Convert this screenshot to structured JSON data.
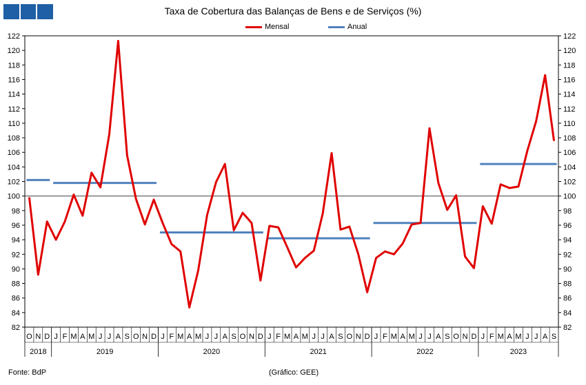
{
  "header": {
    "title": "Taxa de Cobertura das Balanças de Bens e de Serviços (%)"
  },
  "footer": {
    "source": "Fonte: BdP",
    "credit": "(Gráfico: GEE)"
  },
  "colors": {
    "logo": "#1f5fa5",
    "mensal": "#e00000",
    "anual": "#4f81bd"
  },
  "chart_data": {
    "type": "line",
    "title": "Taxa de Cobertura das Balanças de Bens e de Serviços (%)",
    "ylim": [
      82,
      122
    ],
    "yticks": [
      82,
      84,
      86,
      88,
      90,
      92,
      94,
      96,
      98,
      100,
      102,
      104,
      106,
      108,
      110,
      112,
      114,
      116,
      118,
      120,
      122
    ],
    "reference_line": 100,
    "legend_position": "top-center",
    "grid": false,
    "month_labels": [
      "O",
      "N",
      "D",
      "J",
      "F",
      "M",
      "A",
      "M",
      "J",
      "J",
      "A",
      "S",
      "O",
      "N",
      "D",
      "J",
      "F",
      "M",
      "A",
      "M",
      "J",
      "J",
      "A",
      "S",
      "O",
      "N",
      "D",
      "J",
      "F",
      "M",
      "A",
      "M",
      "J",
      "J",
      "A",
      "S",
      "O",
      "N",
      "D",
      "J",
      "F",
      "M",
      "A",
      "M",
      "J",
      "J",
      "A",
      "S",
      "O",
      "N",
      "D",
      "J",
      "F",
      "M",
      "A",
      "M",
      "J",
      "J",
      "A",
      "S"
    ],
    "years": [
      {
        "label": "2018",
        "start": 0,
        "end": 2
      },
      {
        "label": "2019",
        "start": 3,
        "end": 14
      },
      {
        "label": "2020",
        "start": 15,
        "end": 26
      },
      {
        "label": "2021",
        "start": 27,
        "end": 38
      },
      {
        "label": "2022",
        "start": 39,
        "end": 50
      },
      {
        "label": "2023",
        "start": 51,
        "end": 59
      }
    ],
    "series": [
      {
        "name": "Mensal",
        "color": "#e00000",
        "values": [
          99.8,
          89.2,
          96.5,
          94.0,
          96.5,
          100.2,
          97.3,
          103.2,
          101.2,
          108.5,
          121.3,
          105.6,
          99.6,
          96.1,
          99.5,
          96.3,
          93.4,
          92.4,
          84.7,
          89.8,
          97.4,
          101.9,
          104.4,
          95.3,
          97.7,
          96.3,
          88.4,
          95.9,
          95.7,
          93.0,
          90.2,
          91.5,
          92.5,
          97.6,
          105.9,
          95.4,
          95.8,
          92.0,
          86.8,
          91.5,
          92.4,
          92.0,
          93.5,
          96.1,
          96.3,
          109.3,
          101.8,
          98.1,
          100.1,
          91.7,
          90.1,
          98.6,
          96.2,
          101.6,
          101.1,
          101.3,
          106.2,
          110.3,
          116.6,
          107.6
        ]
      },
      {
        "name": "Anual",
        "color": "#4f81bd",
        "segments": [
          {
            "year": "2018",
            "start": 0,
            "end": 2,
            "value": 102.2
          },
          {
            "year": "2019",
            "start": 3,
            "end": 14,
            "value": 101.8
          },
          {
            "year": "2020",
            "start": 15,
            "end": 26,
            "value": 95.0
          },
          {
            "year": "2021",
            "start": 27,
            "end": 38,
            "value": 94.2
          },
          {
            "year": "2022",
            "start": 39,
            "end": 50,
            "value": 96.3
          },
          {
            "year": "2023",
            "start": 51,
            "end": 59,
            "value": 104.4
          }
        ]
      }
    ]
  }
}
